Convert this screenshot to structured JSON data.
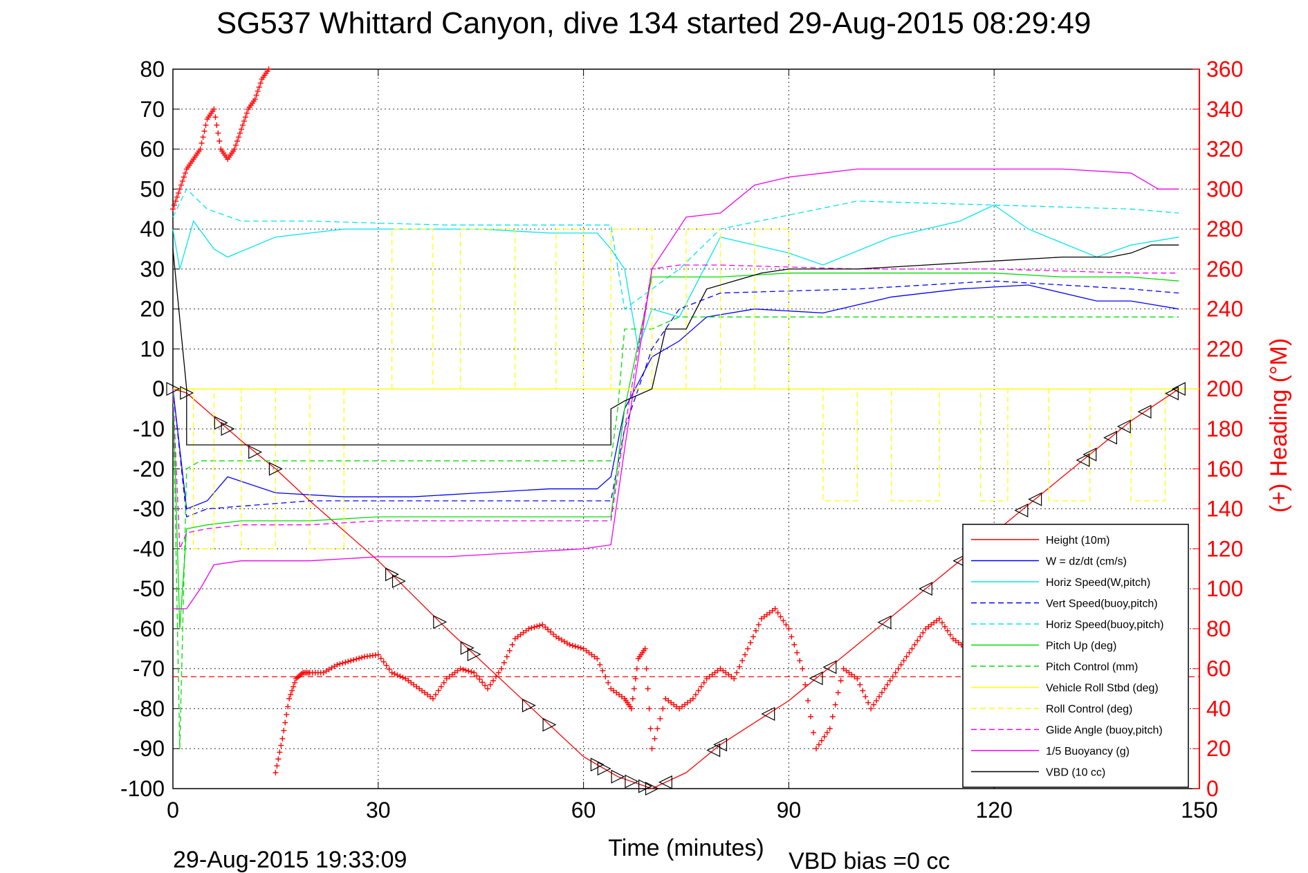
{
  "chart_data": {
    "type": "line",
    "title": "SG537 Whittard Canyon, dive 134 started 29-Aug-2015 08:29:49",
    "xlabel": "Time (minutes)",
    "ylabel": "",
    "ylabel_right": "(+) Heading (°M)",
    "xlim": [
      0,
      150
    ],
    "ylim": [
      -100,
      80
    ],
    "ylim_right": [
      0,
      360
    ],
    "xticks": [
      0,
      30,
      60,
      90,
      120,
      150
    ],
    "xtick_labels": [
      "0",
      "30",
      "60",
      "90",
      "120",
      "150"
    ],
    "yticks": [
      80,
      70,
      60,
      50,
      40,
      30,
      20,
      10,
      0,
      -10,
      -20,
      -30,
      -40,
      -50,
      -60,
      -70,
      -80,
      -90,
      -100
    ],
    "ytick_labels": [
      "80",
      "70",
      "60",
      "50",
      "40",
      "30",
      "20",
      "10",
      "0",
      "-10",
      "-20",
      "-30",
      "-40",
      "-50",
      "-60",
      "-70",
      "-80",
      "-90",
      "-100"
    ],
    "yticks_right": [
      360,
      340,
      320,
      300,
      280,
      260,
      240,
      220,
      200,
      180,
      160,
      140,
      120,
      100,
      80,
      60,
      40,
      20,
      0
    ],
    "ytick_labels_right": [
      "360",
      "340",
      "320",
      "300",
      "280",
      "260",
      "240",
      "220",
      "200",
      "180",
      "160",
      "140",
      "120",
      "100",
      "80",
      "60",
      "40",
      "20",
      "0"
    ],
    "grid": true,
    "legend_position": "bottom-right",
    "series": [
      {
        "name": "Height (10m)",
        "color": "#ff0000",
        "style": "solid",
        "x": [
          0,
          2,
          6,
          10,
          15,
          20,
          30,
          40,
          50,
          60,
          65,
          70,
          75,
          80,
          90,
          100,
          110,
          120,
          130,
          140,
          147
        ],
        "y": [
          0,
          -1,
          -7,
          -13,
          -20,
          -28,
          -43,
          -60,
          -76,
          -92,
          -97,
          -100,
          -96,
          -89,
          -78,
          -64,
          -50,
          -36,
          -22,
          -8,
          0
        ]
      },
      {
        "name": "W = dz/dt (cm/s)",
        "color": "#0000ff",
        "style": "solid",
        "x": [
          0,
          1,
          2,
          5,
          8,
          15,
          25,
          35,
          45,
          55,
          62,
          64,
          66,
          70,
          74,
          78,
          85,
          95,
          105,
          115,
          125,
          135,
          140,
          147
        ],
        "y": [
          0,
          -15,
          -30,
          -28,
          -22,
          -26,
          -27,
          -27,
          -26,
          -25,
          -25,
          -22,
          -5,
          8,
          12,
          18,
          20,
          19,
          23,
          25,
          26,
          22,
          22,
          20
        ]
      },
      {
        "name": "Horiz Speed(W,pitch)",
        "color": "#00e5ee",
        "style": "solid",
        "x": [
          0,
          1,
          3,
          6,
          8,
          15,
          25,
          35,
          45,
          55,
          62,
          64,
          66,
          68,
          70,
          74,
          80,
          90,
          95,
          105,
          115,
          120,
          125,
          135,
          140,
          147
        ],
        "y": [
          40,
          30,
          42,
          35,
          33,
          38,
          40,
          40,
          40,
          39,
          39,
          35,
          30,
          10,
          20,
          18,
          38,
          34,
          31,
          38,
          42,
          46,
          40,
          33,
          36,
          38
        ]
      },
      {
        "name": "Vert Speed(buoy,pitch)",
        "color": "#0000ff",
        "style": "dashed",
        "x": [
          0,
          2,
          5,
          20,
          40,
          64,
          66,
          70,
          74,
          80,
          100,
          120,
          140,
          147
        ],
        "y": [
          0,
          -32,
          -30,
          -28,
          -28,
          -28,
          -10,
          10,
          20,
          24,
          25,
          27,
          25,
          24
        ]
      },
      {
        "name": "Horiz Speed(buoy,pitch)",
        "color": "#00e5ee",
        "style": "dashed",
        "x": [
          0,
          2,
          5,
          10,
          20,
          40,
          64,
          66,
          70,
          74,
          80,
          100,
          120,
          140,
          147
        ],
        "y": [
          43,
          50,
          45,
          42,
          42,
          41,
          41,
          20,
          25,
          30,
          40,
          47,
          46,
          45,
          44
        ]
      },
      {
        "name": "Pitch Up (deg)",
        "color": "#00dd00",
        "style": "solid",
        "x": [
          0,
          1,
          2,
          5,
          10,
          20,
          30,
          40,
          50,
          60,
          64,
          66,
          70,
          80,
          90,
          100,
          110,
          120,
          130,
          140,
          147
        ],
        "y": [
          0,
          -60,
          -35,
          -34,
          -33,
          -33,
          -32,
          -32,
          -32,
          -32,
          -32,
          -5,
          28,
          28,
          29,
          29,
          29,
          29,
          28,
          28,
          27
        ]
      },
      {
        "name": "Pitch Control (mm)",
        "color": "#00dd00",
        "style": "dashed",
        "x": [
          0,
          1,
          2,
          4,
          10,
          20,
          30,
          40,
          50,
          60,
          64,
          65,
          66,
          70,
          74,
          80,
          90,
          100,
          110,
          120,
          130,
          140,
          147
        ],
        "y": [
          0,
          -90,
          -20,
          -18,
          -18,
          -18,
          -18,
          -18,
          -18,
          -18,
          -18,
          -5,
          15,
          15,
          18,
          18,
          18,
          18,
          18,
          18,
          18,
          18,
          18
        ]
      },
      {
        "name": "Vehicle Roll Stbd (deg)",
        "color": "#ffff00",
        "style": "solid",
        "x": [
          0,
          150
        ],
        "y": [
          0,
          0
        ]
      },
      {
        "name": "Roll Control (deg)",
        "color": "#ffff00",
        "style": "dashed",
        "x": [
          0,
          3,
          3,
          6,
          6,
          10,
          10,
          15,
          15,
          20,
          20,
          25,
          25,
          32,
          32,
          38,
          38,
          42,
          42,
          50,
          50,
          56,
          56,
          60,
          60,
          64,
          64,
          70,
          70,
          75,
          75,
          80,
          80,
          85,
          85,
          90,
          90,
          95,
          95,
          100,
          100,
          105,
          105,
          112,
          112,
          118,
          118,
          122,
          122,
          128,
          128,
          134,
          134,
          140,
          140,
          145,
          145,
          147
        ],
        "y": [
          0,
          0,
          -40,
          -40,
          0,
          0,
          -40,
          -40,
          0,
          0,
          -40,
          -40,
          0,
          0,
          40,
          40,
          0,
          0,
          40,
          40,
          0,
          0,
          40,
          40,
          0,
          0,
          40,
          40,
          0,
          0,
          40,
          40,
          0,
          0,
          40,
          40,
          0,
          0,
          -28,
          -28,
          0,
          0,
          -28,
          -28,
          0,
          0,
          -28,
          -28,
          0,
          0,
          -28,
          -28,
          0,
          0,
          -28,
          -28,
          0,
          0
        ]
      },
      {
        "name": "Glide Angle (buoy,pitch)",
        "color": "#ee00ee",
        "style": "dashed",
        "x": [
          0,
          1,
          2,
          5,
          10,
          20,
          30,
          40,
          50,
          60,
          64,
          66,
          70,
          74,
          80,
          100,
          120,
          140,
          147
        ],
        "y": [
          0,
          -40,
          -36,
          -35,
          -34,
          -34,
          -33,
          -33,
          -33,
          -33,
          -33,
          -10,
          30,
          31,
          31,
          30,
          30,
          29,
          29
        ]
      },
      {
        "name": "1/5 Buoyancy (g)",
        "color": "#ee00ee",
        "style": "solid",
        "x": [
          0,
          1,
          2,
          4,
          6,
          10,
          20,
          30,
          40,
          50,
          60,
          64,
          66,
          70,
          75,
          80,
          85,
          90,
          95,
          100,
          110,
          120,
          130,
          140,
          144,
          147
        ],
        "y": [
          -55,
          -55,
          -55,
          -50,
          -44,
          -43,
          -43,
          -42,
          -42,
          -41,
          -40,
          -39,
          -15,
          30,
          43,
          44,
          51,
          53,
          54,
          55,
          55,
          55,
          55,
          54,
          50,
          50
        ]
      },
      {
        "name": "VBD (10 cc)",
        "color": "#000000",
        "style": "solid",
        "x": [
          0,
          2,
          2,
          64,
          64,
          66,
          70,
          72,
          75,
          78,
          82,
          86,
          90,
          95,
          100,
          110,
          120,
          130,
          137,
          140,
          143,
          147
        ],
        "y": [
          35,
          0,
          -14,
          -14,
          -5,
          -3,
          0,
          15,
          15,
          25,
          27,
          29,
          30,
          30,
          30,
          31,
          32,
          33,
          33,
          34,
          36,
          36
        ]
      }
    ],
    "threshold": {
      "name": "Height threshold",
      "y": -72,
      "color": "#ff0000",
      "style": "dashed"
    },
    "heading_points": {
      "name": "(+) Heading (°M)",
      "axis": "right",
      "color": "#ff0000",
      "marker": "+",
      "x": [
        0,
        1,
        2,
        3,
        4,
        5,
        6,
        7,
        8,
        9,
        10,
        11,
        12,
        13,
        14,
        15,
        16,
        17,
        18,
        19,
        20,
        22,
        24,
        26,
        28,
        30,
        32,
        34,
        36,
        38,
        40,
        42,
        44,
        46,
        48,
        50,
        52,
        54,
        56,
        58,
        60,
        62,
        64,
        66,
        67,
        68,
        69,
        70,
        72,
        74,
        76,
        78,
        80,
        82,
        84,
        86,
        88,
        90,
        92,
        94,
        96,
        98,
        100,
        102,
        104,
        106,
        108,
        110,
        112,
        114,
        116
      ],
      "y": [
        290,
        300,
        310,
        315,
        320,
        335,
        340,
        320,
        315,
        320,
        330,
        340,
        345,
        355,
        360,
        8,
        25,
        45,
        55,
        58,
        58,
        58,
        62,
        64,
        66,
        67,
        58,
        55,
        50,
        45,
        55,
        60,
        58,
        50,
        60,
        75,
        80,
        82,
        76,
        72,
        70,
        65,
        50,
        45,
        40,
        65,
        70,
        20,
        45,
        40,
        45,
        55,
        60,
        55,
        70,
        85,
        90,
        80,
        60,
        20,
        30,
        60,
        55,
        40,
        50,
        60,
        70,
        80,
        85,
        75,
        70
      ]
    },
    "descent_markers": {
      "name": "Descent markers",
      "marker": "triangle-right",
      "color": "#000000",
      "x": [
        0,
        2,
        7,
        8,
        12,
        15,
        32,
        33,
        39,
        43,
        44,
        52,
        55,
        62,
        63,
        65,
        67,
        69,
        70
      ]
    },
    "ascent_markers": {
      "name": "Ascent markers",
      "marker": "triangle-left",
      "color": "#000000",
      "x": [
        72,
        79,
        80,
        87,
        94,
        96,
        104,
        110,
        115,
        120,
        124,
        126,
        133,
        134,
        137,
        139,
        142,
        146,
        147
      ]
    }
  },
  "footer": {
    "timestamp": "29-Aug-2015 19:33:09",
    "vbd_bias": "VBD bias =0 cc"
  }
}
